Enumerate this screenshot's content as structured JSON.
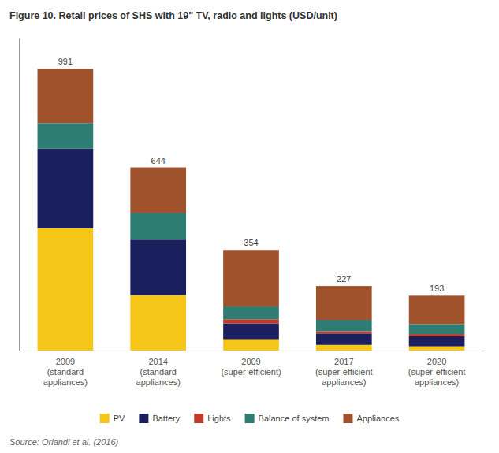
{
  "chart_data": {
    "type": "bar",
    "stacked": true,
    "title": "Figure 10. Retail prices of SHS with 19\" TV, radio and lights (USD/unit)",
    "annotations": [
      "Source: Orlandi et al. (2016)"
    ],
    "categories": [
      "2009\n(standard\nappliances)",
      "2014\n(standard\nappliances)",
      "2009\n(super-efficient)",
      "2017\n(super-efficient\nappliances)",
      "2020\n(super-efficient\nappliances)"
    ],
    "series": [
      {
        "name": "PV",
        "color": "#f5c518",
        "values": [
          430,
          195,
          40,
          20,
          15
        ]
      },
      {
        "name": "Battery",
        "color": "#1a1f5e",
        "values": [
          280,
          195,
          55,
          40,
          35
        ]
      },
      {
        "name": "Lights",
        "color": "#c0392b",
        "values": [
          0,
          0,
          15,
          8,
          8
        ]
      },
      {
        "name": "Balance of system",
        "color": "#2e7d72",
        "values": [
          90,
          95,
          45,
          40,
          35
        ]
      },
      {
        "name": "Appliances",
        "color": "#a0522d",
        "values": [
          191,
          159,
          199,
          119,
          100
        ]
      }
    ],
    "totals": [
      991,
      644,
      354,
      227,
      193
    ],
    "ylim": [
      0,
      1100
    ],
    "grid": false,
    "legend": "bottom",
    "tick_labels": "x"
  }
}
